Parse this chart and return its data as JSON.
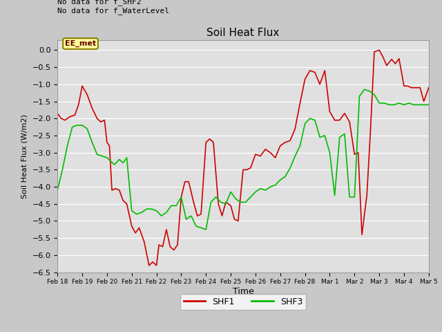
{
  "title": "Soil Heat Flux",
  "xlabel": "Time",
  "ylabel": "Soil Heat Flux (W/m2)",
  "ylim": [
    -6.5,
    0.3
  ],
  "yticks": [
    0.0,
    -0.5,
    -1.0,
    -1.5,
    -2.0,
    -2.5,
    -3.0,
    -3.5,
    -4.0,
    -4.5,
    -5.0,
    -5.5,
    -6.0,
    -6.5
  ],
  "fig_bg_color": "#c8c8c8",
  "plot_bg_color": "#e0e0e0",
  "annotation_text": "No data for f_SHF2\nNo data for f_WaterLevel",
  "box_label": "EE_met",
  "box_color": "#ffff99",
  "box_border_color": "#8B8000",
  "line1_color": "#cc0000",
  "line2_color": "#00bb00",
  "label1": "SHF1",
  "label2": "SHF3",
  "x_tick_labels": [
    "Feb 18",
    "Feb 19",
    "Feb 20",
    "Feb 21",
    "Feb 22",
    "Feb 23",
    "Feb 24",
    "Feb 25",
    "Feb 26",
    "Feb 27",
    "Feb 28",
    "Mar 1",
    "Mar 2",
    "Mar 3",
    "Mar 4",
    "Mar 5"
  ],
  "shf1_x": [
    0.0,
    0.15,
    0.3,
    0.5,
    0.7,
    0.85,
    1.0,
    1.2,
    1.4,
    1.6,
    1.75,
    1.9,
    2.0,
    2.1,
    2.2,
    2.35,
    2.5,
    2.65,
    2.8,
    3.0,
    3.15,
    3.3,
    3.5,
    3.7,
    3.85,
    4.0,
    4.1,
    4.25,
    4.4,
    4.55,
    4.7,
    4.85,
    5.0,
    5.15,
    5.3,
    5.5,
    5.65,
    5.8,
    6.0,
    6.15,
    6.3,
    6.5,
    6.65,
    6.8,
    7.0,
    7.15,
    7.3,
    7.5,
    7.65,
    7.8,
    8.0,
    8.2,
    8.4,
    8.6,
    8.8,
    9.0,
    9.2,
    9.4,
    9.6,
    9.8,
    10.0,
    10.2,
    10.4,
    10.6,
    10.8,
    11.0,
    11.2,
    11.4,
    11.6,
    11.8,
    12.0,
    12.15,
    12.3,
    12.5,
    12.65,
    12.8,
    13.0,
    13.15,
    13.3,
    13.5,
    13.65,
    13.8,
    14.0,
    14.15,
    14.3,
    14.5,
    14.65,
    14.8,
    15.0
  ],
  "shf1_y": [
    -1.85,
    -2.0,
    -2.05,
    -1.95,
    -1.9,
    -1.6,
    -1.05,
    -1.3,
    -1.7,
    -2.0,
    -2.1,
    -2.05,
    -2.7,
    -2.8,
    -4.1,
    -4.05,
    -4.1,
    -4.4,
    -4.5,
    -5.15,
    -5.35,
    -5.2,
    -5.6,
    -6.3,
    -6.2,
    -6.3,
    -5.7,
    -5.75,
    -5.25,
    -5.75,
    -5.85,
    -5.7,
    -4.3,
    -3.85,
    -3.85,
    -4.45,
    -4.85,
    -4.8,
    -2.7,
    -2.6,
    -2.7,
    -4.5,
    -4.85,
    -4.45,
    -4.55,
    -4.95,
    -5.0,
    -3.5,
    -3.5,
    -3.45,
    -3.05,
    -3.1,
    -2.9,
    -3.0,
    -3.15,
    -2.8,
    -2.7,
    -2.65,
    -2.3,
    -1.55,
    -0.85,
    -0.6,
    -0.65,
    -1.0,
    -0.6,
    -1.8,
    -2.05,
    -2.05,
    -1.85,
    -2.1,
    -3.05,
    -3.0,
    -5.4,
    -4.25,
    -2.3,
    -0.05,
    0.0,
    -0.2,
    -0.45,
    -0.27,
    -0.4,
    -0.25,
    -1.05,
    -1.05,
    -1.1,
    -1.1,
    -1.1,
    -1.5,
    -1.1
  ],
  "shf3_x": [
    0.0,
    0.2,
    0.4,
    0.6,
    0.8,
    1.0,
    1.2,
    1.4,
    1.6,
    1.8,
    2.0,
    2.15,
    2.3,
    2.5,
    2.65,
    2.8,
    3.0,
    3.2,
    3.4,
    3.6,
    3.8,
    4.0,
    4.2,
    4.4,
    4.6,
    4.8,
    5.0,
    5.2,
    5.4,
    5.6,
    5.8,
    6.0,
    6.2,
    6.4,
    6.6,
    6.8,
    7.0,
    7.2,
    7.4,
    7.6,
    7.8,
    8.0,
    8.2,
    8.4,
    8.6,
    8.8,
    9.0,
    9.2,
    9.4,
    9.6,
    9.8,
    10.0,
    10.2,
    10.4,
    10.6,
    10.8,
    11.0,
    11.2,
    11.4,
    11.6,
    11.8,
    12.0,
    12.2,
    12.4,
    12.6,
    12.8,
    13.0,
    13.2,
    13.4,
    13.6,
    13.8,
    14.0,
    14.2,
    14.4,
    14.6,
    14.8,
    15.0
  ],
  "shf3_y": [
    -4.1,
    -3.5,
    -2.8,
    -2.25,
    -2.2,
    -2.2,
    -2.3,
    -2.7,
    -3.05,
    -3.1,
    -3.15,
    -3.25,
    -3.35,
    -3.2,
    -3.3,
    -3.15,
    -4.7,
    -4.8,
    -4.75,
    -4.65,
    -4.65,
    -4.7,
    -4.85,
    -4.75,
    -4.55,
    -4.55,
    -4.3,
    -4.95,
    -4.85,
    -5.15,
    -5.2,
    -5.25,
    -4.45,
    -4.3,
    -4.45,
    -4.5,
    -4.15,
    -4.35,
    -4.45,
    -4.45,
    -4.3,
    -4.15,
    -4.05,
    -4.1,
    -4.0,
    -3.95,
    -3.8,
    -3.7,
    -3.45,
    -3.1,
    -2.8,
    -2.15,
    -2.0,
    -2.05,
    -2.55,
    -2.5,
    -3.0,
    -4.25,
    -2.55,
    -2.45,
    -4.3,
    -4.3,
    -1.35,
    -1.15,
    -1.2,
    -1.3,
    -1.55,
    -1.55,
    -1.6,
    -1.6,
    -1.55,
    -1.6,
    -1.55,
    -1.6,
    -1.6,
    -1.6,
    -1.6
  ]
}
